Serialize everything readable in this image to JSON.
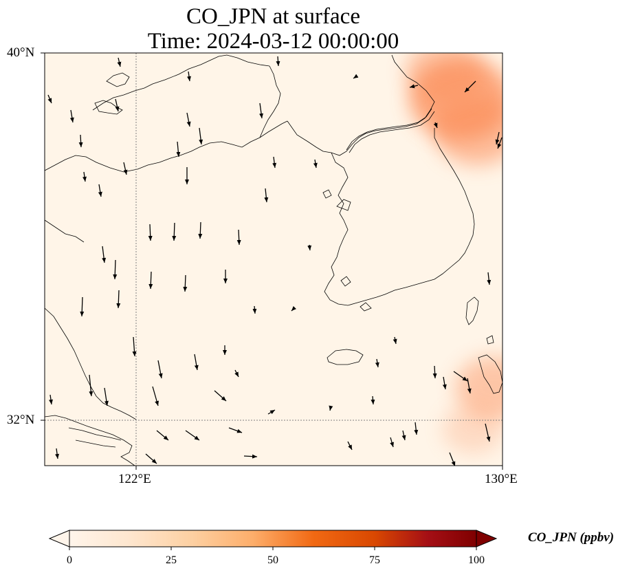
{
  "title": {
    "line1": "CO_JPN at surface",
    "line2": "Time: 2024-03-12 00:00:00"
  },
  "map": {
    "lon_range": [
      119,
      130
    ],
    "lat_range": [
      31,
      40
    ],
    "background_color": "#fff5e8",
    "gridlines": "dotted",
    "lat_ticks": [
      "40°N",
      "32°N"
    ],
    "lon_ticks": [
      "122°E",
      "130°E"
    ],
    "plume_color": "#fc8d59",
    "plumes": [
      {
        "lon": 129.0,
        "lat": 39.0,
        "value": 30
      },
      {
        "lon": 129.4,
        "lat": 38.3,
        "value": 22
      },
      {
        "lon": 128.6,
        "lat": 39.6,
        "value": 18
      },
      {
        "lon": 129.8,
        "lat": 32.7,
        "value": 18
      },
      {
        "lon": 129.3,
        "lat": 31.8,
        "value": 10
      }
    ],
    "wind_arrows_shown": true
  },
  "colorbar": {
    "label": "CO_JPN (ppbv)",
    "ticks": [
      "0",
      "25",
      "50",
      "75",
      "100"
    ],
    "colors": [
      "#fff5eb",
      "#fee6ce",
      "#fdd0a2",
      "#fdae6b",
      "#fd8d3c",
      "#f16913",
      "#d94801",
      "#a50f15",
      "#7f0000"
    ],
    "extend": "both"
  }
}
